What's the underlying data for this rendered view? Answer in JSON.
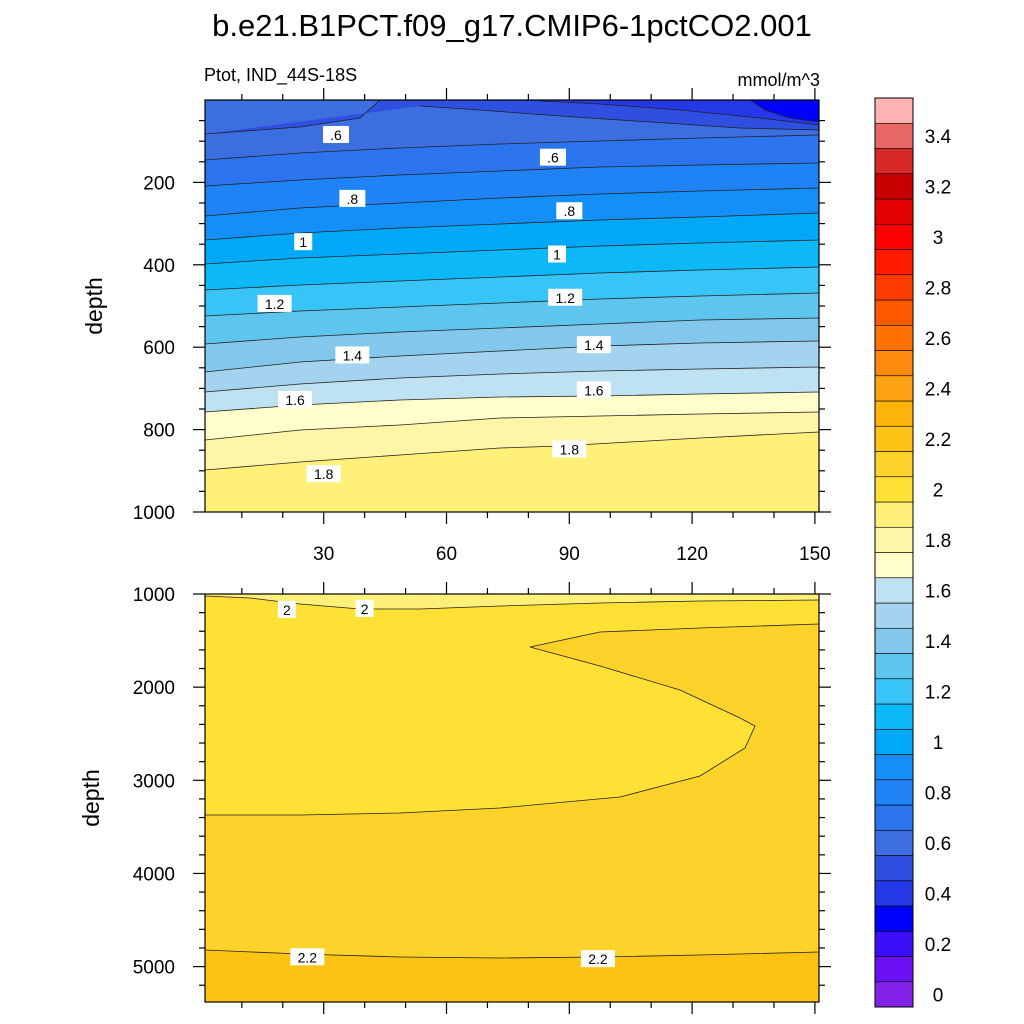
{
  "title": "b.e21.B1PCT.f09_g17.CMIP6-1pctCO2.001",
  "chart_data": {
    "type": "heatmap",
    "variable_label": "Ptot, IND_44S-18S",
    "units_label": "mmol/m^3",
    "panels": [
      {
        "id": "upper",
        "ylabel": "depth",
        "ylim": [
          1000,
          0
        ],
        "xlim": [
          1,
          151
        ],
        "yticks": [
          "200",
          "400",
          "600",
          "800",
          "1000"
        ],
        "xticks": [
          "30",
          "60",
          "90",
          "120",
          "150"
        ],
        "contour_labels": [
          {
            "text": ".6",
            "x": 33,
            "y": 85
          },
          {
            "text": ".6",
            "x": 86,
            "y": 140
          },
          {
            "text": ".8",
            "x": 37,
            "y": 240
          },
          {
            "text": ".8",
            "x": 90,
            "y": 270
          },
          {
            "text": "1",
            "x": 25,
            "y": 345
          },
          {
            "text": "1",
            "x": 87,
            "y": 375
          },
          {
            "text": "1.2",
            "x": 18,
            "y": 495
          },
          {
            "text": "1.2",
            "x": 89,
            "y": 480
          },
          {
            "text": "1.4",
            "x": 37,
            "y": 620
          },
          {
            "text": "1.4",
            "x": 96,
            "y": 595
          },
          {
            "text": "1.6",
            "x": 23,
            "y": 728
          },
          {
            "text": "1.6",
            "x": 96,
            "y": 705
          },
          {
            "text": "1.8",
            "x": 30,
            "y": 908
          },
          {
            "text": "1.8",
            "x": 90,
            "y": 848
          }
        ]
      },
      {
        "id": "lower",
        "ylabel": "depth",
        "ylim": [
          5380,
          1000
        ],
        "xlim": [
          1,
          151
        ],
        "yticks": [
          "1000",
          "2000",
          "3000",
          "4000",
          "5000"
        ],
        "contour_labels": [
          {
            "text": "2",
            "x": 21,
            "y": 1170
          },
          {
            "text": "2",
            "x": 40,
            "y": 1160
          },
          {
            "text": "2.2",
            "x": 26,
            "y": 4900
          },
          {
            "text": "2.2",
            "x": 97,
            "y": 4920
          }
        ]
      }
    ],
    "colorbar": {
      "levels": [
        0,
        0.1,
        0.2,
        0.3,
        0.4,
        0.5,
        0.6,
        0.7,
        0.8,
        0.9,
        1.0,
        1.1,
        1.2,
        1.3,
        1.4,
        1.5,
        1.6,
        1.7,
        1.8,
        1.9,
        2.0,
        2.1,
        2.2,
        2.3,
        2.4,
        2.5,
        2.6,
        2.7,
        2.8,
        2.9,
        3.0,
        3.1,
        3.2,
        3.3,
        3.4,
        3.5
      ],
      "tick_labels": [
        "0",
        "0.2",
        "0.4",
        "0.6",
        "0.8",
        "1",
        "1.2",
        "1.4",
        "1.6",
        "1.8",
        "2",
        "2.2",
        "2.4",
        "2.6",
        "2.8",
        "3",
        "3.2",
        "3.4"
      ],
      "colors": [
        "#8222e8",
        "#6a10f2",
        "#3a0ff7",
        "#0000ff",
        "#2538e8",
        "#2e4fe0",
        "#3d6ee0",
        "#2b74ee",
        "#1f83f6",
        "#148ff8",
        "#00a8f8",
        "#0cb8f8",
        "#38c4f6",
        "#5ec6ee",
        "#84c7ec",
        "#a3d3ee",
        "#bfe2f3",
        "#fffdc9",
        "#fff5a6",
        "#fff07a",
        "#ffe035",
        "#fdd22a",
        "#fdc314",
        "#fdb40a",
        "#fda212",
        "#fd8a0d",
        "#ff7200",
        "#ff5a00",
        "#ff3c00",
        "#ff1a00",
        "#ff0000",
        "#e30000",
        "#c80000",
        "#d92828",
        "#e86868",
        "#ffb4b4"
      ]
    }
  }
}
